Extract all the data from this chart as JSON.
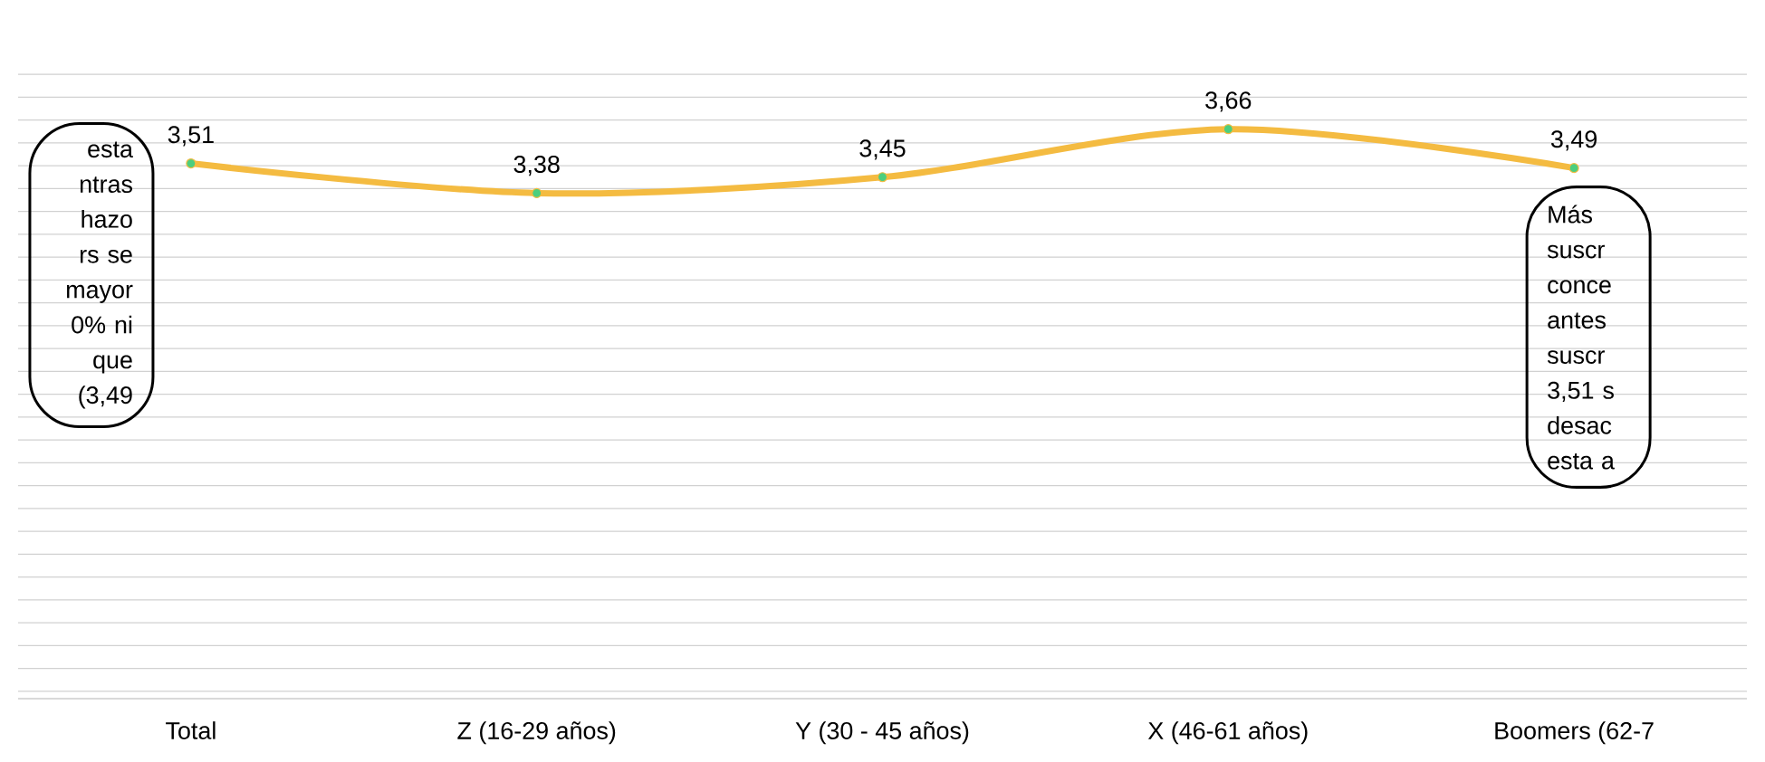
{
  "chart_data": {
    "type": "line",
    "categories": [
      "Total",
      "Z (16-29 años)",
      "Y (30 - 45 años)",
      "X (46-61 años)",
      "Boomers (62-7"
    ],
    "series": [
      {
        "color": "#f4bb41",
        "values": [
          3.51,
          3.38,
          3.45,
          3.66,
          3.49
        ],
        "value_labels": [
          "3,51",
          "3,38",
          "3,45",
          "3,66",
          "3,49"
        ]
      }
    ],
    "grid": "y",
    "marker": "circle",
    "line_style": "solid",
    "tick_labels": "x",
    "annotations": [
      "esta ntras hazo rs se mayor 0% ni que (3,49",
      "Más suscr conce antes suscr 3,51 s desac esta a"
    ]
  }
}
